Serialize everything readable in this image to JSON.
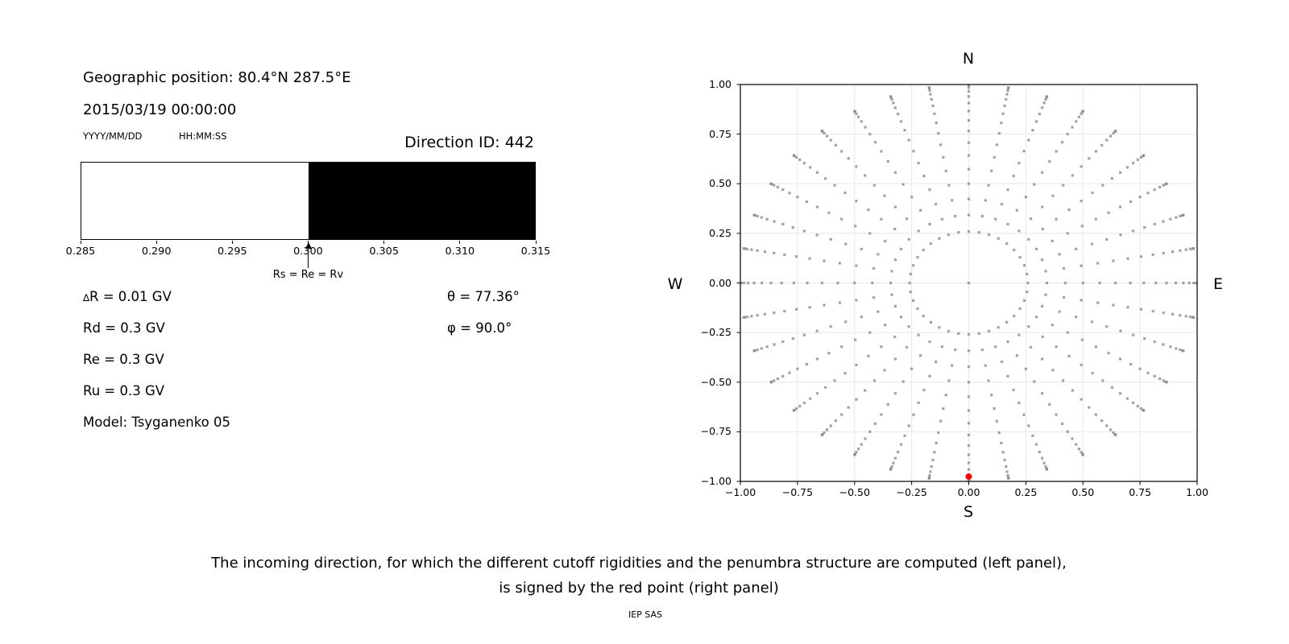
{
  "header": {
    "geo_position": "Geographic position: 80.4°N 287.5°E",
    "datetime": "2015/03/19 00:00:00",
    "date_format": "YYYY/MM/DD",
    "time_format": "HH:MM:SS",
    "direction_id": "Direction ID: 442"
  },
  "parameters": {
    "delta_symbol": "∆",
    "delta_r_rest": "R = 0.01 GV",
    "rd": "Rd = 0.3 GV",
    "re": "Re = 0.3 GV",
    "ru": "Ru = 0.3 GV",
    "model": "Model: Tsyganenko 05",
    "theta": "θ = 77.36°",
    "phi": "φ = 90.0°"
  },
  "chart_data": [
    {
      "id": "penumbra-bar",
      "type": "bar",
      "xlim": [
        0.285,
        0.315
      ],
      "ticks": [
        {
          "value": 0.285,
          "label": "0.285"
        },
        {
          "value": 0.29,
          "label": "0.290"
        },
        {
          "value": 0.295,
          "label": "0.295"
        },
        {
          "value": 0.3,
          "label": "0.300"
        },
        {
          "value": 0.305,
          "label": "0.305"
        },
        {
          "value": 0.31,
          "label": "0.310"
        },
        {
          "value": 0.315,
          "label": "0.315"
        }
      ],
      "segments": [
        {
          "from": 0.285,
          "to": 0.3,
          "state": "allowed",
          "color": "#ffffff"
        },
        {
          "from": 0.3,
          "to": 0.315,
          "state": "forbidden",
          "color": "#000000"
        }
      ],
      "annotation": {
        "x": 0.3,
        "label": "Rs = Re = Rv"
      }
    },
    {
      "id": "direction-scatter",
      "type": "scatter",
      "xlim": [
        -1,
        1
      ],
      "ylim": [
        -1,
        1
      ],
      "grid": true,
      "grid_color": "#e8e8e8",
      "ticks": {
        "values": [
          -1,
          -0.75,
          -0.5,
          -0.25,
          0,
          0.25,
          0.5,
          0.75,
          1
        ],
        "labels": [
          "−1.00",
          "−0.75",
          "−0.50",
          "−0.25",
          "0.00",
          "0.25",
          "0.50",
          "0.75",
          "1.00"
        ]
      },
      "compass": {
        "top": "N",
        "bottom": "S",
        "left": "W",
        "right": "E"
      },
      "direction_grid": {
        "description": "incoming-direction grid: radius = sin(zenith), azimuth measured clockwise from N; plus one point at the center (zenith 0)",
        "zenith_deg": [
          15,
          20,
          25,
          30,
          35,
          40,
          45,
          50,
          55,
          60,
          65,
          70,
          75,
          80,
          85,
          90
        ],
        "azimuth_deg": [
          0,
          10,
          20,
          30,
          40,
          50,
          60,
          70,
          80,
          90,
          100,
          110,
          120,
          130,
          140,
          150,
          160,
          170,
          180,
          190,
          200,
          210,
          220,
          230,
          240,
          250,
          260,
          270,
          280,
          290,
          300,
          310,
          320,
          330,
          340,
          350
        ],
        "center_point": {
          "x": 0.0,
          "y": 0.0
        },
        "dot_color": "#7f7f7f"
      },
      "red_point": {
        "x": 0.0,
        "y": -0.976,
        "theta_deg": 77.36,
        "phi_deg": 90.0,
        "color": "#ff0000"
      }
    }
  ],
  "caption": {
    "line1": "The incoming direction, for which the different cutoff rigidities and the penumbra structure are computed (left panel),",
    "line2": "is signed by the red point (right panel)",
    "credit": "IEP SAS"
  }
}
